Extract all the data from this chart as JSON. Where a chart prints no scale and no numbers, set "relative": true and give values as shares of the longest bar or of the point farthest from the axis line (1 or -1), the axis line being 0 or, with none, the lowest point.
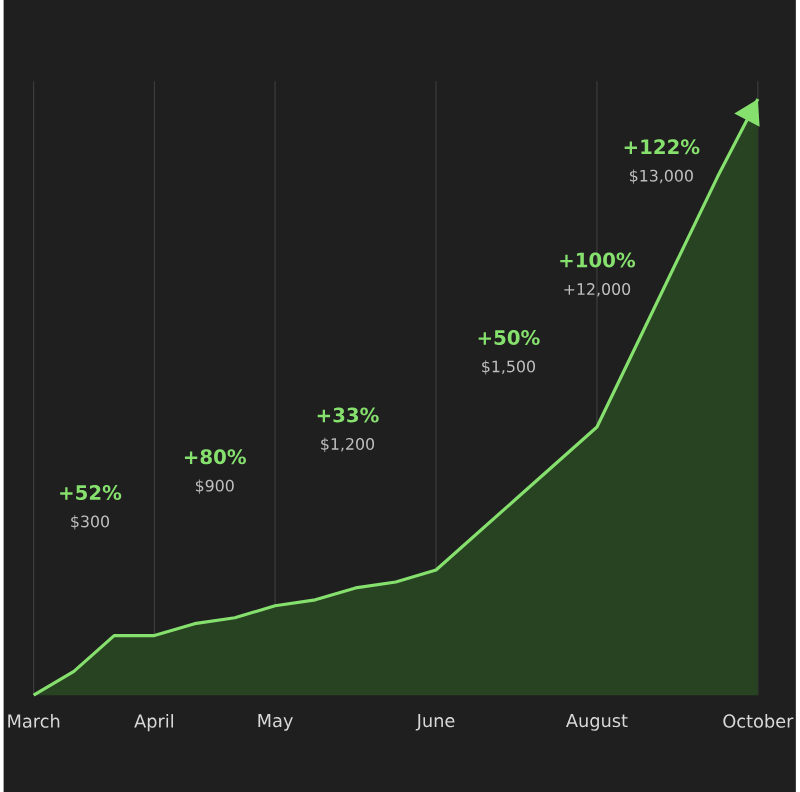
{
  "chart_data": {
    "type": "area",
    "relative": true,
    "grid": "x",
    "tick_labels": "x",
    "categories": [
      "March",
      null,
      null,
      "April",
      null,
      null,
      "May",
      null,
      null,
      null,
      "June",
      null,
      null,
      null,
      "August",
      null,
      null,
      null,
      "October"
    ],
    "series": [
      {
        "color": "#86e06e",
        "values": [
          0,
          0.04,
          0.1,
          0.1,
          0.12,
          0.13,
          0.15,
          0.16,
          0.18,
          0.19,
          0.21,
          0.27,
          0.33,
          0.39,
          0.45,
          0.59,
          0.73,
          0.87,
          1.0
        ]
      }
    ],
    "annotations": [
      "+52%",
      "$300",
      "+80%",
      "$900",
      "+33%",
      "$1,200",
      "+50%",
      "$1,500",
      "+100%",
      "+12,000",
      "+122%",
      "$13,000"
    ]
  }
}
